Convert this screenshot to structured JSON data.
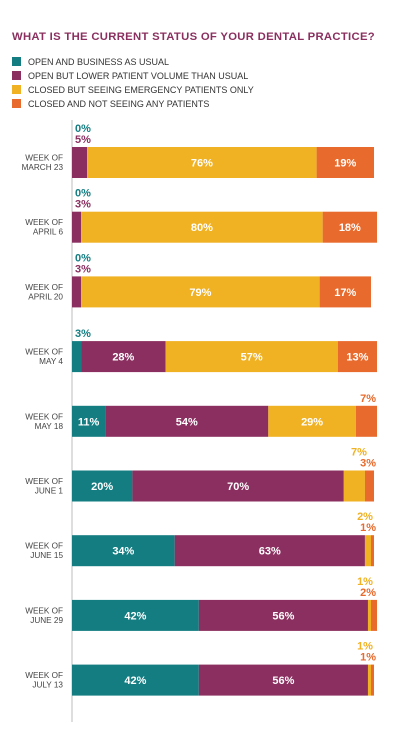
{
  "chart_data": {
    "type": "bar",
    "orientation": "horizontal",
    "stacked": true,
    "title": "WHAT IS THE CURRENT STATUS OF YOUR DENTAL PRACTICE?",
    "legend_position": "top-left",
    "xlim": [
      0,
      100
    ],
    "xunit": "%",
    "grid": false,
    "categories": [
      [
        "WEEK OF",
        "MARCH 23"
      ],
      [
        "WEEK OF",
        "APRIL 6"
      ],
      [
        "WEEK OF",
        "APRIL 20"
      ],
      [
        "WEEK OF",
        "MAY 4"
      ],
      [
        "WEEK OF",
        "MAY 18"
      ],
      [
        "WEEK OF",
        "JUNE 1"
      ],
      [
        "WEEK OF",
        "JUNE 15"
      ],
      [
        "WEEK OF",
        "JUNE 29"
      ],
      [
        "WEEK OF",
        "JULY 13"
      ]
    ],
    "series": [
      {
        "name": "OPEN AND BUSINESS AS USUAL",
        "color": "#137d82",
        "values": [
          0,
          0,
          0,
          3,
          11,
          20,
          34,
          42,
          42
        ]
      },
      {
        "name": "OPEN BUT LOWER PATIENT VOLUME THAN USUAL",
        "color": "#8a2f5f",
        "values": [
          5,
          3,
          3,
          28,
          54,
          70,
          63,
          56,
          56
        ]
      },
      {
        "name": "CLOSED BUT SEEING EMERGENCY PATIENTS ONLY",
        "color": "#f0b123",
        "values": [
          76,
          80,
          79,
          57,
          29,
          7,
          2,
          1,
          1
        ]
      },
      {
        "name": "CLOSED AND NOT SEEING ANY PATIENTS",
        "color": "#e86a2c",
        "values": [
          19,
          18,
          17,
          13,
          7,
          3,
          1,
          2,
          1
        ]
      }
    ]
  }
}
